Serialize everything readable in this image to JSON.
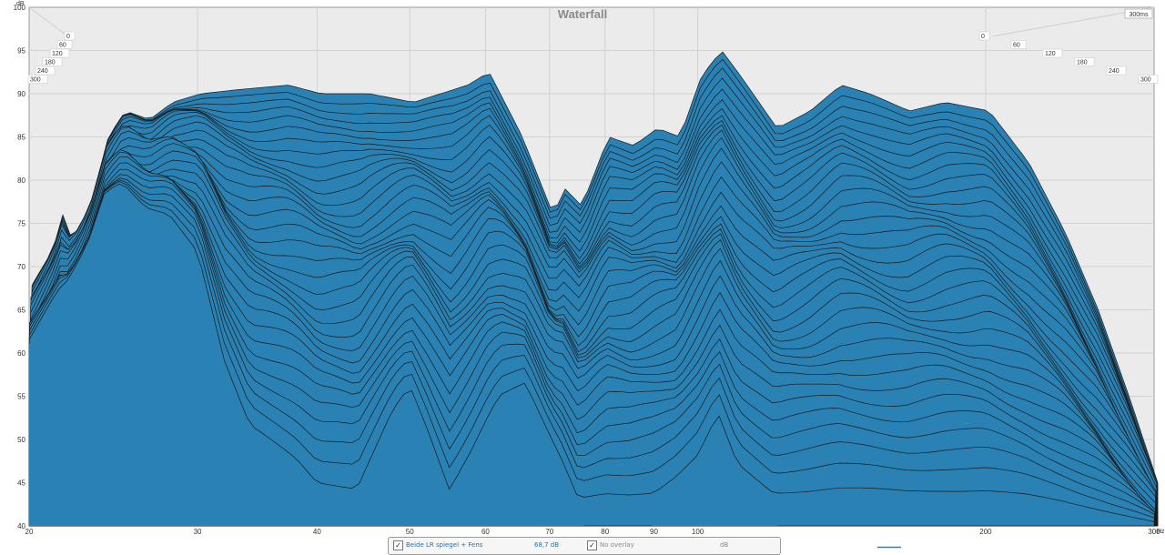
{
  "chart_data": {
    "type": "area",
    "title": "Waterfall",
    "y_unit_label": "dB",
    "x_unit_label": "Hz",
    "time_unit_label": "300ms",
    "xlim": [
      20,
      300
    ],
    "ylim": [
      40,
      100
    ],
    "x_scale": "log",
    "x_ticks": [
      20,
      30,
      40,
      50,
      60,
      70,
      80,
      90,
      100,
      200,
      300
    ],
    "y_ticks": [
      40,
      45,
      50,
      55,
      60,
      65,
      70,
      75,
      80,
      85,
      90,
      95,
      100
    ],
    "time_ticks_left": [
      "0",
      "60",
      "120",
      "180",
      "240",
      "300"
    ],
    "time_ticks_right": [
      "0",
      "60",
      "120",
      "180",
      "240",
      "300"
    ],
    "slices_ms": [
      0,
      300
    ],
    "back_slice_db": [
      [
        20,
        68
      ],
      [
        21,
        72
      ],
      [
        21.5,
        76
      ],
      [
        22,
        73
      ],
      [
        23,
        77
      ],
      [
        24,
        85
      ],
      [
        25,
        88
      ],
      [
        26.5,
        87
      ],
      [
        28,
        89
      ],
      [
        30,
        90
      ],
      [
        33,
        90.5
      ],
      [
        37,
        91
      ],
      [
        40,
        90
      ],
      [
        45,
        90
      ],
      [
        50,
        89
      ],
      [
        57,
        91
      ],
      [
        60,
        92.5
      ],
      [
        65,
        85
      ],
      [
        70,
        76
      ],
      [
        72,
        79
      ],
      [
        75,
        77
      ],
      [
        80,
        85
      ],
      [
        85,
        84
      ],
      [
        90,
        86
      ],
      [
        95,
        85
      ],
      [
        100,
        92
      ],
      [
        105,
        95
      ],
      [
        110,
        92
      ],
      [
        120,
        86
      ],
      [
        130,
        88
      ],
      [
        140,
        91
      ],
      [
        150,
        90
      ],
      [
        165,
        88
      ],
      [
        180,
        89
      ],
      [
        200,
        88
      ],
      [
        220,
        82
      ],
      [
        240,
        74
      ],
      [
        260,
        65
      ],
      [
        280,
        55
      ],
      [
        300,
        45
      ]
    ],
    "front_slice_db": [
      [
        20,
        61
      ],
      [
        21,
        65
      ],
      [
        22,
        68
      ],
      [
        23,
        72
      ],
      [
        24,
        78
      ],
      [
        25,
        79
      ],
      [
        26.5,
        76
      ],
      [
        28,
        75
      ],
      [
        30,
        70
      ],
      [
        32,
        56
      ],
      [
        34,
        48
      ],
      [
        36,
        46
      ],
      [
        38,
        44
      ],
      [
        40,
        41
      ],
      [
        44,
        40
      ],
      [
        48,
        50
      ],
      [
        50,
        53
      ],
      [
        52,
        48
      ],
      [
        55,
        40
      ],
      [
        58,
        45
      ],
      [
        62,
        52
      ],
      [
        66,
        54
      ],
      [
        70,
        48
      ],
      [
        75,
        40
      ],
      [
        80,
        40
      ],
      [
        90,
        40
      ],
      [
        100,
        44
      ],
      [
        105,
        49
      ],
      [
        110,
        43
      ],
      [
        120,
        40
      ],
      [
        300,
        40
      ]
    ],
    "series_color": "#2a82b4",
    "legend": {
      "entry_name": "Beide LR spiegel + Fens",
      "entry_value": "68,7 dB",
      "overlay_label": "No overlay",
      "unit": "dB"
    }
  }
}
